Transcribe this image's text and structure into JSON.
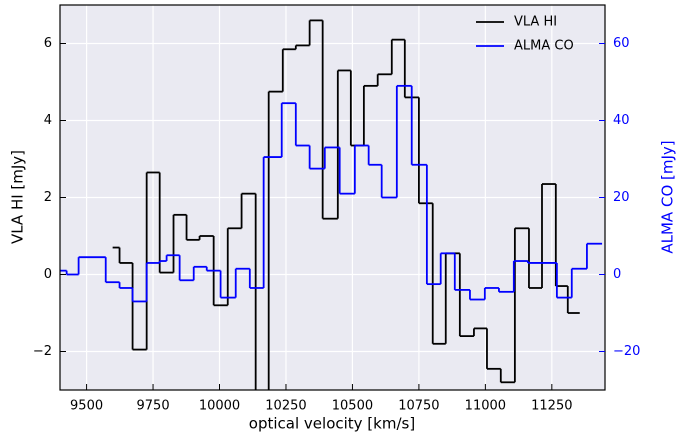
{
  "chart_data": {
    "type": "step",
    "xlabel": "optical velocity [km/s]",
    "ylabel": "VLA HI [mJy]",
    "y2label": "ALMA CO [mJy]",
    "xlim": [
      9400,
      11450
    ],
    "ylim": [
      -3,
      7
    ],
    "y2lim": [
      -30,
      70
    ],
    "xticks": [
      9500,
      9750,
      10000,
      10250,
      10500,
      10750,
      11000,
      11250
    ],
    "yticks": [
      {
        "value": -2,
        "label": "−2"
      },
      0,
      2,
      4,
      6
    ],
    "y2ticks": [
      {
        "value": -20,
        "label": "−20"
      },
      0,
      20,
      40,
      60
    ],
    "grid": true,
    "legend": "upper right",
    "series": [
      {
        "name": "VLA HI",
        "color": "#000000",
        "x": [
          9598,
          9624,
          9673,
          9726,
          9775,
          9827,
          9876,
          9925,
          9978,
          10031,
          10083,
          10136,
          10185,
          10238,
          10287,
          10339,
          10388,
          10445,
          10494,
          10543,
          10595,
          10648,
          10697,
          10750,
          10802,
          10851,
          10904,
          10957,
          11006,
          11058,
          11111,
          11164,
          11213,
          11265,
          11310
        ],
        "values": [
          0.7,
          0.3,
          -1.95,
          2.65,
          0.05,
          1.55,
          0.9,
          1.0,
          -0.8,
          1.2,
          2.1,
          -3.2,
          4.75,
          5.85,
          5.95,
          6.6,
          1.45,
          5.3,
          3.35,
          4.9,
          5.2,
          6.1,
          4.6,
          1.85,
          -1.8,
          0.55,
          -1.6,
          -1.4,
          -2.45,
          -2.8,
          1.2,
          -0.35,
          2.35,
          -0.3,
          -1.0
        ]
      },
      {
        "name": "ALMA CO",
        "color": "#0000ff",
        "axis": "y2",
        "x": [
          9398,
          9425,
          9470,
          9572,
          9624,
          9673,
          9726,
          9775,
          9801,
          9850,
          9903,
          9952,
          10004,
          10061,
          10114,
          10166,
          10234,
          10287,
          10339,
          10396,
          10452,
          10509,
          10561,
          10610,
          10667,
          10723,
          10780,
          10832,
          10885,
          10942,
          10998,
          11051,
          11107,
          11160,
          11269,
          11325,
          11382
        ],
        "values": [
          1,
          0,
          4.5,
          -2,
          -3.5,
          -7,
          3,
          3.5,
          5,
          -1.5,
          2,
          1,
          -6,
          1.5,
          -3.5,
          30.5,
          44.5,
          33.5,
          27.5,
          33,
          21,
          33.5,
          28.5,
          20,
          49,
          28.5,
          -2.5,
          5.5,
          -4,
          -6.5,
          -3.5,
          -4.5,
          3.5,
          3,
          -6,
          1.5,
          8
        ]
      }
    ]
  }
}
